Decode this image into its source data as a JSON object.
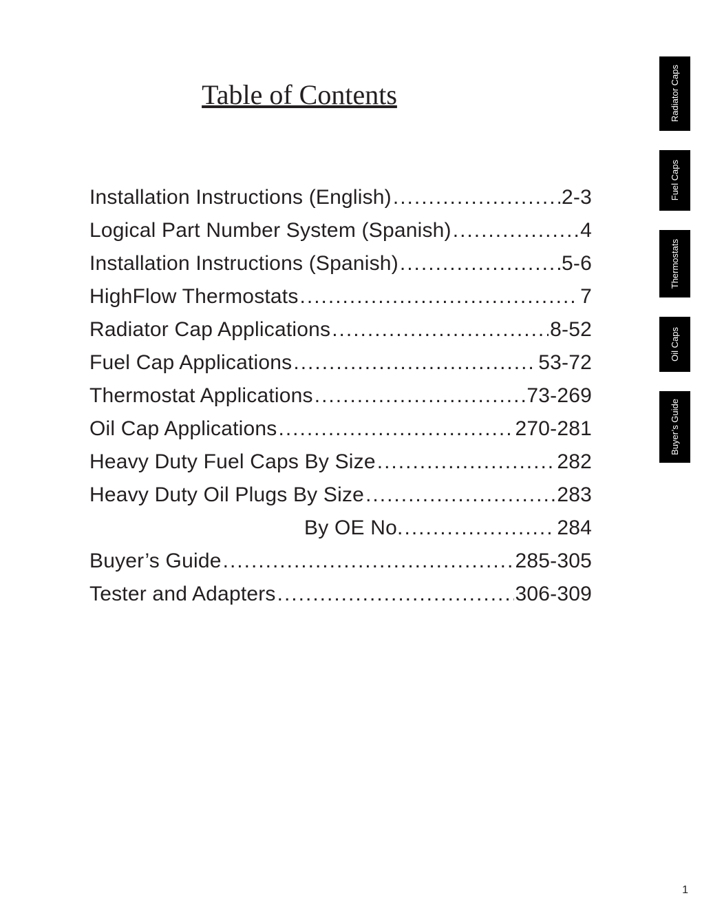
{
  "title": "Table of Contents",
  "page_number": "1",
  "colors": {
    "text": "#231f20",
    "tab_bg": "#000000",
    "tab_text": "#ffffff",
    "background": "#ffffff"
  },
  "typography": {
    "title_font": "Times New Roman",
    "title_size_pt": 30,
    "body_font": "Arial",
    "body_size_pt": 22,
    "tab_size_pt": 10
  },
  "toc": [
    {
      "label": "Installation Instructions (English)",
      "page": "2-3",
      "indent": false
    },
    {
      "label": "Logical Part Number System (Spanish)",
      "page": "4",
      "indent": false
    },
    {
      "label": "Installation Instructions (Spanish)",
      "page": "5-6",
      "indent": false
    },
    {
      "label": "HighFlow Thermostats",
      "page": "7",
      "indent": false
    },
    {
      "label": "Radiator Cap Applications",
      "page": "8-52",
      "indent": false
    },
    {
      "label": "Fuel Cap Applications",
      "page": "53-72",
      "indent": false
    },
    {
      "label": "Thermostat Applications",
      "page": "73-269",
      "indent": false
    },
    {
      "label": "Oil Cap Applications",
      "page": "270-281",
      "indent": false
    },
    {
      "label": "Heavy Duty Fuel Caps By Size",
      "page": "282",
      "indent": false
    },
    {
      "label": "Heavy Duty Oil Plugs By Size",
      "page": "283",
      "indent": false
    },
    {
      "label": "By OE No.",
      "page": "284",
      "indent": true
    },
    {
      "label": "Buyer’s Guide",
      "page": "285-305",
      "indent": false
    },
    {
      "label": "Tester and Adapters",
      "page": "306-309",
      "indent": false
    }
  ],
  "tabs": [
    {
      "label": "Radiator Caps",
      "height_class": "h108"
    },
    {
      "label": "Fuel Caps",
      "height_class": "h88"
    },
    {
      "label": "Thermostats",
      "height_class": "h98"
    },
    {
      "label": "Oil Caps",
      "height_class": "h80"
    },
    {
      "label": "Buyer’s Guide",
      "height_class": "h104"
    }
  ]
}
